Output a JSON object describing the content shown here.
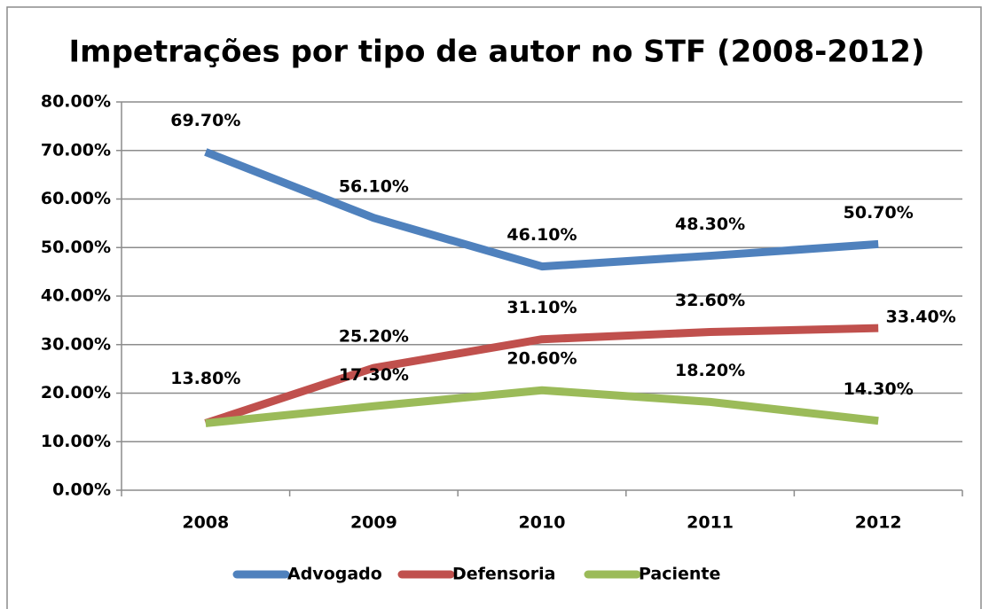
{
  "chart_data": {
    "type": "line",
    "title": "Impetrações por tipo de autor no STF (2008-2012)",
    "categories": [
      "2008",
      "2009",
      "2010",
      "2011",
      "2012"
    ],
    "series": [
      {
        "name": "Advogado",
        "color": "#4f81bd",
        "values": [
          69.7,
          56.1,
          46.1,
          48.3,
          50.7
        ],
        "value_labels": [
          "69.70%",
          "56.10%",
          "46.10%",
          "48.30%",
          "50.70%"
        ]
      },
      {
        "name": "Defensoria",
        "color": "#c0504d",
        "values": [
          13.8,
          25.2,
          31.1,
          32.6,
          33.4
        ],
        "value_labels": [
          "13.80%",
          "25.20%",
          "31.10%",
          "32.60%",
          "33.40%"
        ]
      },
      {
        "name": "Paciente",
        "color": "#9bbb59",
        "values": [
          13.8,
          17.3,
          20.6,
          18.2,
          14.3
        ],
        "value_labels": [
          null,
          "17.30%",
          "20.60%",
          "18.20%",
          "14.30%"
        ]
      }
    ],
    "ylim": [
      0,
      80
    ],
    "yticks": [
      {
        "value": 0,
        "label": "0.00%"
      },
      {
        "value": 10,
        "label": "10.00%"
      },
      {
        "value": 20,
        "label": "20.00%"
      },
      {
        "value": 30,
        "label": "30.00%"
      },
      {
        "value": 40,
        "label": "40.00%"
      },
      {
        "value": 50,
        "label": "50.00%"
      },
      {
        "value": 60,
        "label": "60.00%"
      },
      {
        "value": 70,
        "label": "70.00%"
      },
      {
        "value": 80,
        "label": "80.00%"
      }
    ],
    "grid": true,
    "legend": "bottom"
  }
}
